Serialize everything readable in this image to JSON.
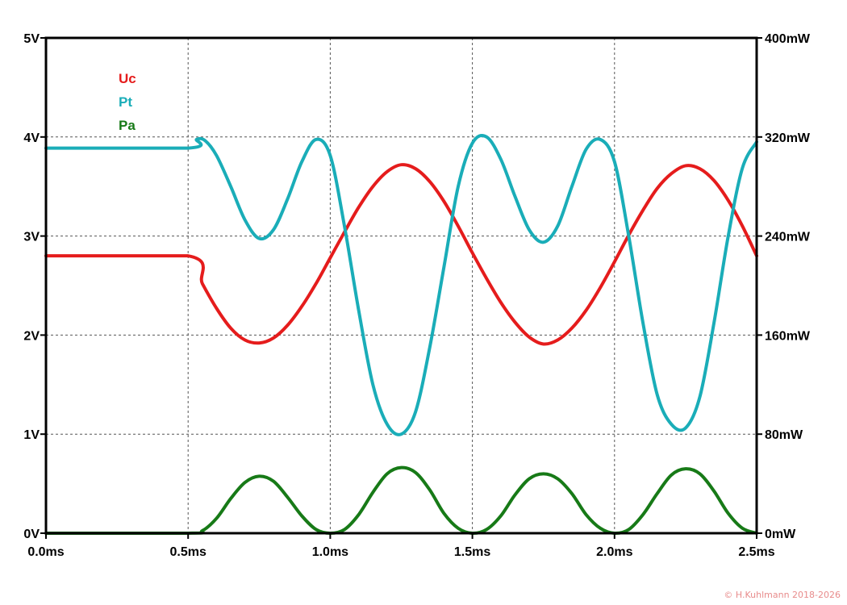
{
  "chart_data": {
    "type": "line",
    "title": "",
    "xlabel": "",
    "ylabel": "",
    "xlim": [
      0.0,
      2.5
    ],
    "ylim_left": [
      0,
      5
    ],
    "ylim_right": [
      0,
      400
    ],
    "grid": true,
    "legend_position": "top-left",
    "x_ticks": [
      "0.0ms",
      "0.5ms",
      "1.0ms",
      "1.5ms",
      "2.0ms",
      "2.5ms"
    ],
    "x_tick_values": [
      0.0,
      0.5,
      1.0,
      1.5,
      2.0,
      2.5
    ],
    "y_left_ticks": [
      "0V",
      "1V",
      "2V",
      "3V",
      "4V",
      "5V"
    ],
    "y_left_tick_values": [
      0,
      1,
      2,
      3,
      4,
      5
    ],
    "y_right_ticks": [
      "0mW",
      "80mW",
      "160mW",
      "240mW",
      "320mW",
      "400mW"
    ],
    "y_right_tick_values": [
      0,
      80,
      160,
      240,
      320,
      400
    ],
    "series": [
      {
        "name": "Uc",
        "axis": "left",
        "color": "#e51c1c",
        "x": [
          0.0,
          0.5,
          0.55,
          0.6,
          0.65,
          0.7,
          0.75,
          0.8,
          0.85,
          0.9,
          0.95,
          1.0,
          1.05,
          1.1,
          1.15,
          1.2,
          1.25,
          1.3,
          1.35,
          1.4,
          1.45,
          1.5,
          1.55,
          1.6,
          1.65,
          1.7,
          1.75,
          1.8,
          1.85,
          1.9,
          1.95,
          2.0,
          2.05,
          2.1,
          2.15,
          2.2,
          2.25,
          2.3,
          2.35,
          2.4,
          2.45,
          2.5
        ],
        "values": [
          2.8,
          2.8,
          2.52,
          2.27,
          2.07,
          1.95,
          1.92,
          1.97,
          2.1,
          2.29,
          2.52,
          2.78,
          3.04,
          3.29,
          3.5,
          3.65,
          3.72,
          3.68,
          3.55,
          3.35,
          3.1,
          2.83,
          2.57,
          2.33,
          2.13,
          1.98,
          1.91,
          1.95,
          2.07,
          2.25,
          2.48,
          2.74,
          3.01,
          3.26,
          3.48,
          3.63,
          3.71,
          3.68,
          3.56,
          3.36,
          3.1,
          2.8
        ]
      },
      {
        "name": "Pt",
        "axis": "right",
        "color": "#1aadb8",
        "x": [
          0.0,
          0.5,
          0.53,
          0.56,
          0.6,
          0.65,
          0.7,
          0.75,
          0.8,
          0.85,
          0.9,
          0.95,
          1.0,
          1.05,
          1.1,
          1.15,
          1.2,
          1.25,
          1.3,
          1.35,
          1.4,
          1.45,
          1.5,
          1.55,
          1.6,
          1.65,
          1.7,
          1.75,
          1.8,
          1.85,
          1.9,
          1.95,
          2.0,
          2.05,
          2.1,
          2.15,
          2.2,
          2.25,
          2.3,
          2.35,
          2.4,
          2.45,
          2.5
        ],
        "values": [
          311,
          311,
          318,
          317,
          305,
          280,
          253,
          238,
          245,
          270,
          300,
          318,
          305,
          248,
          180,
          120,
          88,
          80,
          98,
          150,
          215,
          280,
          315,
          320,
          302,
          272,
          245,
          235,
          248,
          280,
          310,
          318,
          300,
          240,
          170,
          112,
          88,
          85,
          110,
          170,
          240,
          295,
          316
        ]
      },
      {
        "name": "Pa",
        "axis": "right",
        "color": "#177a17",
        "x": [
          0.0,
          0.5,
          0.55,
          0.6,
          0.65,
          0.7,
          0.75,
          0.8,
          0.85,
          0.9,
          0.95,
          1.0,
          1.05,
          1.1,
          1.15,
          1.2,
          1.25,
          1.3,
          1.35,
          1.4,
          1.45,
          1.5,
          1.55,
          1.6,
          1.65,
          1.7,
          1.75,
          1.8,
          1.85,
          1.9,
          1.95,
          2.0,
          2.05,
          2.1,
          2.15,
          2.2,
          2.25,
          2.3,
          2.35,
          2.4,
          2.45,
          2.5
        ],
        "values": [
          0,
          0,
          2,
          12,
          28,
          41,
          46,
          42,
          29,
          14,
          3,
          0,
          3,
          15,
          33,
          48,
          53,
          49,
          35,
          16,
          4,
          0,
          3,
          14,
          31,
          44,
          48,
          44,
          32,
          15,
          4,
          0,
          3,
          15,
          32,
          47,
          52,
          48,
          34,
          16,
          4,
          0
        ]
      }
    ]
  },
  "copyright": "© H.Kuhlmann 2018-2026"
}
